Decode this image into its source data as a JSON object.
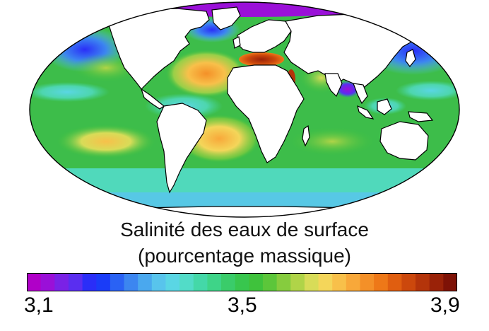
{
  "map": {
    "projection": "mollweide",
    "colors": {
      "ocean_base": "#3dbd4a",
      "land": "#ffffff",
      "coast": "#000000",
      "arctic": "#b000c8"
    }
  },
  "title": {
    "line1": "Salinité des eaux de surface",
    "line2": "(pourcentage massique)"
  },
  "colorbar": {
    "min_label": "3,1",
    "mid_label": "3,5",
    "max_label": "3,9",
    "min": 3.1,
    "max": 3.9,
    "colors": [
      "#b000c8",
      "#9a10d8",
      "#7a22e6",
      "#5a2ef0",
      "#2a2ef8",
      "#1a3cf8",
      "#2a62f4",
      "#3c86f0",
      "#4aa8ee",
      "#58c4ec",
      "#5ad6e4",
      "#52dcc8",
      "#44d8a8",
      "#3ed488",
      "#3acc6a",
      "#38c64e",
      "#3fc23c",
      "#5cc63a",
      "#86cc3e",
      "#b0d448",
      "#d8dc58",
      "#f4d65a",
      "#f8c04a",
      "#f8a83a",
      "#f49028",
      "#ee7818",
      "#e05e10",
      "#cc480c",
      "#b4340a",
      "#9a2208",
      "#7e1206"
    ]
  }
}
